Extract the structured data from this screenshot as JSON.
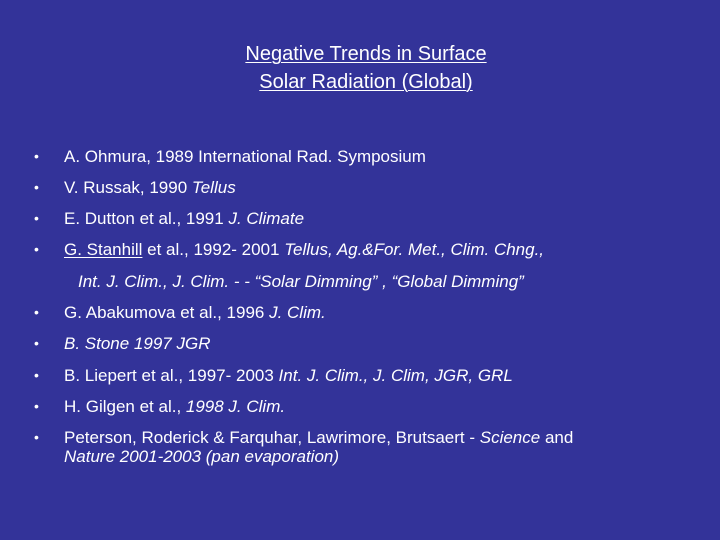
{
  "slide": {
    "title_line1": "Negative Trends in Surface",
    "title_line2": "Solar Radiation (Global)",
    "bullet_char": "•",
    "items": [
      {
        "a": "A. Ohmura, 1989 International Rad. Symposium"
      },
      {
        "a": "V. Russak, 1990 ",
        "b": "Tellus"
      },
      {
        "a": "E. Dutton et al., 1991 ",
        "b": "J. Climate"
      },
      {
        "a": "G. Stanhill",
        "b": " et al., 1992- 2001 ",
        "c": "Tellus, Ag.&For. Met., Clim. Chng.,"
      },
      {
        "cont": "Int. J. Clim., J. Clim.  - -  “Solar Dimming” ,  “Global Dimming”"
      },
      {
        "a": "G. Abakumova et al., 1996 ",
        "b": "J. Clim."
      },
      {
        "a": "B. Stone  1997  JGR"
      },
      {
        "a": "B. Liepert et al., 1997- 2003 ",
        "b": "Int. J. Clim., J. Clim, JGR, GRL"
      },
      {
        "a": "H. Gilgen et al.,  ",
        "b": "1998 J. Clim."
      },
      {
        "a": "Peterson, Roderick & Farquhar, Lawrimore, Brutsaert - ",
        "b": "Science",
        "c": " and",
        "d": "Nature   2001-2003 (pan evaporation)"
      }
    ]
  }
}
